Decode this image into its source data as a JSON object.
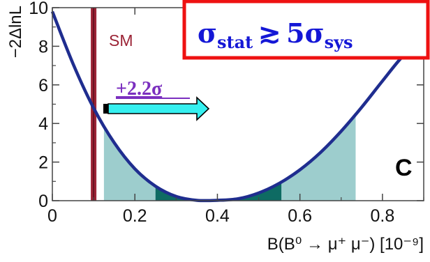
{
  "chart_data": {
    "type": "line",
    "title": "",
    "xlabel": "B(B⁰ → μ⁺ μ⁻) [10⁻⁹]",
    "ylabel": "−2ΔlnL",
    "xlim": [
      0,
      0.9
    ],
    "ylim": [
      0,
      10
    ],
    "xticks": [
      "0",
      "0.2",
      "0.4",
      "0.6",
      "0.8"
    ],
    "yticks": [
      "0",
      "2",
      "4",
      "6",
      "8",
      "10"
    ],
    "xtick_values": [
      0,
      0.2,
      0.4,
      0.6,
      0.8
    ],
    "ytick_values": [
      0,
      2,
      4,
      6,
      8,
      10
    ],
    "grid": false,
    "series": [
      {
        "x": [
          0,
          0.05,
          0.1,
          0.15,
          0.2,
          0.25,
          0.3,
          0.35,
          0.4,
          0.45,
          0.5,
          0.55,
          0.6,
          0.65,
          0.7,
          0.75,
          0.8,
          0.85,
          0.9
        ],
        "y": [
          9.8,
          7.1,
          4.8,
          3.0,
          1.65,
          0.75,
          0.22,
          0.02,
          0.02,
          0.1,
          0.4,
          0.9,
          1.6,
          2.5,
          3.6,
          4.85,
          6.2,
          7.5,
          8.4
        ],
        "color": "#1f2d8f"
      }
    ],
    "bands": [
      {
        "kind": "1sigma",
        "x_range": [
          0.25,
          0.555
        ],
        "color": "#0e6b63"
      },
      {
        "kind": "2sigma",
        "x_range": [
          0.125,
          0.735
        ],
        "color": "#9dcdcd"
      }
    ],
    "reference_line": {
      "label": "SM",
      "x": 0.1,
      "color": "#9b2335"
    },
    "annotations": {
      "panel_letter": "C",
      "shift_label": "+2.2σ",
      "callout": {
        "sigma": "σ",
        "stat": "stat",
        "ge": "≳",
        "five": "5",
        "sys": "sys"
      }
    },
    "colors": {
      "curve": "#1f2d8f",
      "sm_line": "#9b2335",
      "arrow_fill": "#35f0f0",
      "callout_border": "#ee1111",
      "callout_text": "#1417d6",
      "shift_text": "#7b2fbf"
    }
  }
}
